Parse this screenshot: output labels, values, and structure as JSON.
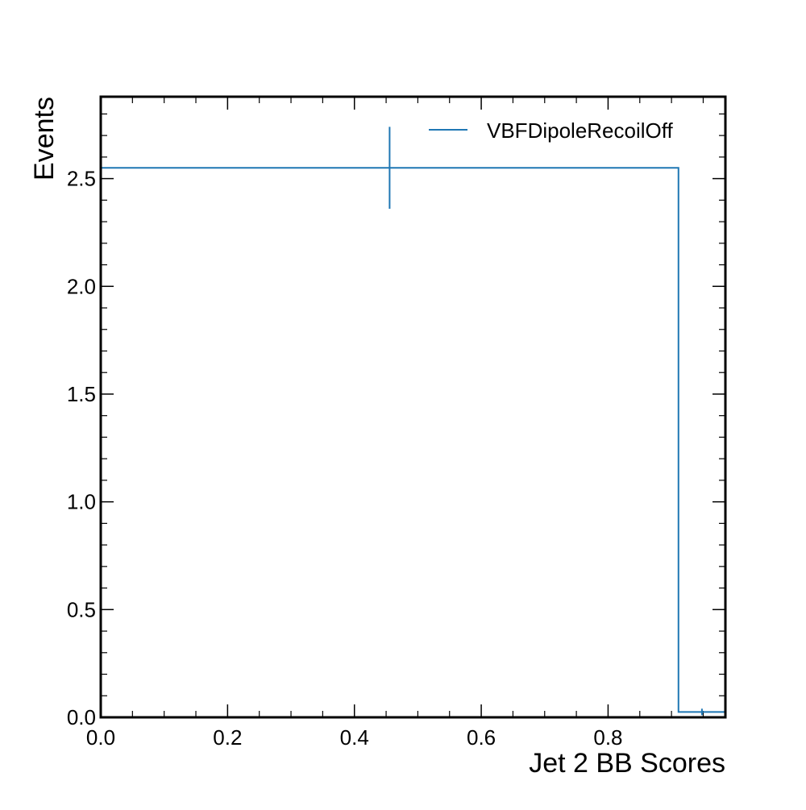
{
  "chart_data": {
    "type": "histogram",
    "title": "",
    "xlabel": "Jet 2 BB Scores",
    "ylabel": "Events",
    "xlim": [
      0.0,
      0.985
    ],
    "ylim": [
      0.0,
      2.88
    ],
    "grid": false,
    "legend_position": "top-right",
    "x_ticks": [
      "0.0",
      "0.2",
      "0.4",
      "0.6",
      "0.8"
    ],
    "y_ticks": [
      "0.0",
      "0.5",
      "1.0",
      "1.5",
      "2.0",
      "2.5"
    ],
    "series": [
      {
        "name": "VBFDipoleRecoilOff",
        "color": "#1f77b4",
        "bin_edges": [
          0.0,
          0.911,
          0.985
        ],
        "values": [
          2.55,
          0.025
        ],
        "errors": [
          0.19,
          0.015
        ]
      }
    ]
  }
}
